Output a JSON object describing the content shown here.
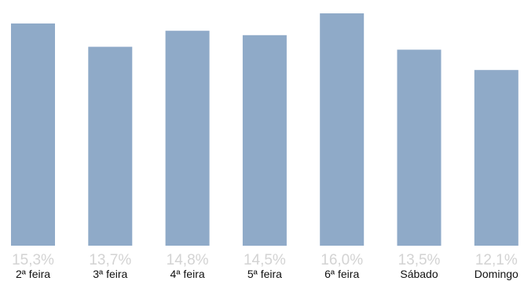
{
  "chart_data": {
    "type": "bar",
    "categories": [
      "2ª feira",
      "3ª feira",
      "4ª feira",
      "5ª feira",
      "6ª feira",
      "Sábado",
      "Domingo"
    ],
    "values": [
      15.3,
      13.7,
      14.8,
      14.5,
      16.0,
      13.5,
      12.1
    ],
    "data_labels": [
      "15,3%",
      "13,7%",
      "14,8%",
      "14,5%",
      "16,0%",
      "13,5%",
      "12,1%"
    ],
    "ylim": [
      0,
      16
    ],
    "grid": false,
    "legend": "none",
    "bar_color": "#8faac8",
    "data_label_color": "#d3d3d3",
    "category_label_color": "#111111"
  }
}
